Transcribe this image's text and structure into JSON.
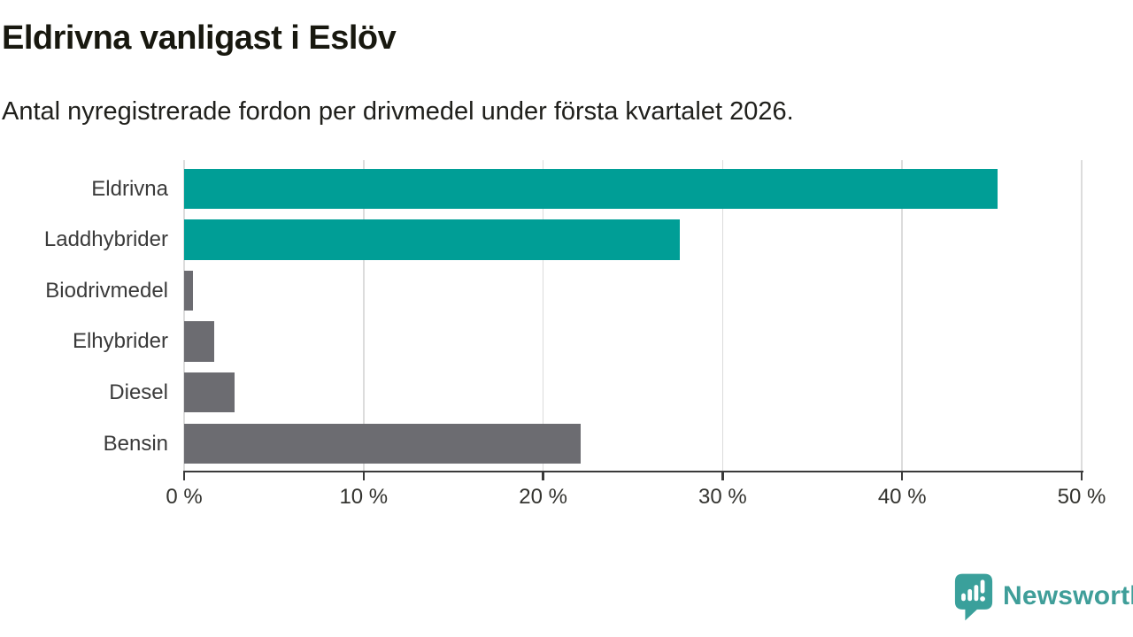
{
  "header": {
    "title": "Eldrivna vanligast i Eslöv",
    "subtitle": "Antal nyregistrerade fordon per drivmedel under första kvartalet 2026."
  },
  "chart_data": {
    "type": "bar",
    "orientation": "horizontal",
    "title": "Eldrivna vanligast i Eslöv",
    "subtitle": "Antal nyregistrerade fordon per drivmedel under första kvartalet 2026.",
    "categories": [
      "Eldrivna",
      "Laddhybrider",
      "Biodrivmedel",
      "Elhybrider",
      "Diesel",
      "Bensin"
    ],
    "values": [
      45.3,
      27.6,
      0.5,
      1.7,
      2.8,
      22.1
    ],
    "unit": "%",
    "bar_colors": [
      "#009e96",
      "#009e96",
      "#6c6c71",
      "#6c6c71",
      "#6c6c71",
      "#6c6c71"
    ],
    "xlim": [
      0,
      50
    ],
    "x_ticks": [
      0,
      10,
      20,
      30,
      40,
      50
    ],
    "x_tick_labels": [
      "0 %",
      "10 %",
      "20 %",
      "30 %",
      "40 %",
      "50 %"
    ],
    "grid": true,
    "legend": "none"
  },
  "footer": {
    "brand": "Newsworthy",
    "logo_icon": "newsworthy-speech-bubble-bar-chart-icon"
  },
  "colors": {
    "accent_teal": "#009e96",
    "neutral_gray": "#6c6c71",
    "brand_teal": "#3f9e99",
    "title_text": "#18180f",
    "body_text": "#3a3a3a",
    "gridline": "#dcdcdc",
    "axis": "#3a3a3a",
    "background": "#ffffff"
  }
}
